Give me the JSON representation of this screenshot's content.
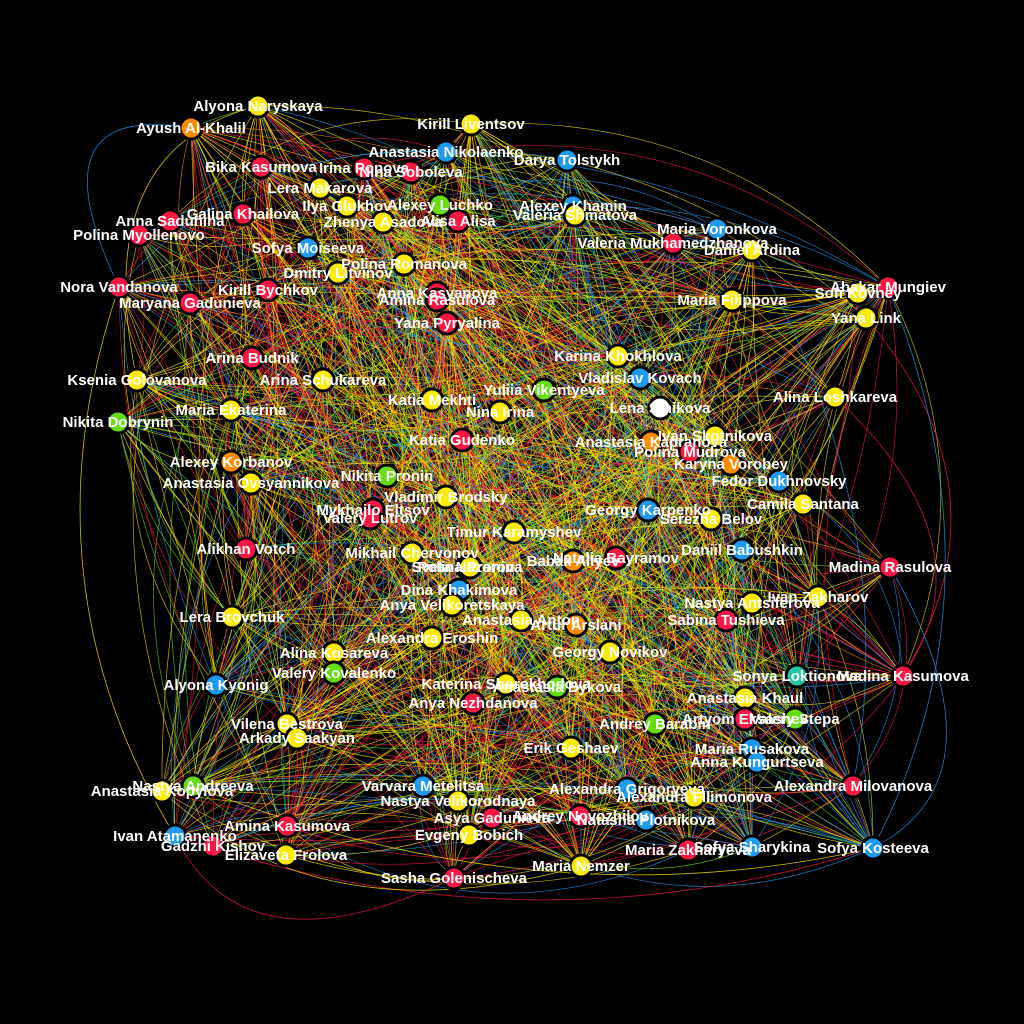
{
  "colors": {
    "background": "#000000",
    "yellow": "#ffeb00",
    "red": "#ff1744",
    "blue": "#1e9bf0",
    "orange": "#ff8c00",
    "green": "#66dd11",
    "teal": "#1ec8a0",
    "pink": "#ff4fa3",
    "white": "#ffffff",
    "node_outline": "#000000"
  },
  "nodes": [
    {
      "id": 1,
      "label": "Alyona Naryskaya",
      "color": "yellow"
    },
    {
      "id": 2,
      "label": "Ayush Al-Khalil",
      "color": "orange"
    },
    {
      "id": 3,
      "label": "Kirill Liventsov",
      "color": "yellow"
    },
    {
      "id": 4,
      "label": "Anastasia Nikolaenko",
      "color": "blue"
    },
    {
      "id": 5,
      "label": "Darya Tolstykh",
      "color": "blue"
    },
    {
      "id": 6,
      "label": "Bika Kasumova",
      "color": "red"
    },
    {
      "id": 7,
      "label": "Irina Popova",
      "color": "red"
    },
    {
      "id": 8,
      "label": "Nina Soboleva",
      "color": "red"
    },
    {
      "id": 9,
      "label": "Lera Makarova",
      "color": "yellow"
    },
    {
      "id": 10,
      "label": "Ilya Glukhov",
      "color": "yellow"
    },
    {
      "id": 11,
      "label": "Alexey Luchko",
      "color": "green"
    },
    {
      "id": 12,
      "label": "Alexey Khamin",
      "color": "blue"
    },
    {
      "id": 13,
      "label": "Valeria Shmatova",
      "color": "yellow"
    },
    {
      "id": 14,
      "label": "Galina Khailova",
      "color": "red"
    },
    {
      "id": 15,
      "label": "Anna Sadunina",
      "color": "red"
    },
    {
      "id": 16,
      "label": "Zhenya Asadova",
      "color": "yellow"
    },
    {
      "id": 17,
      "label": "Alisa Alisa",
      "color": "red"
    },
    {
      "id": 18,
      "label": "Polina Myollenovo",
      "color": "red"
    },
    {
      "id": 19,
      "label": "Sofya Moiseeva",
      "color": "blue"
    },
    {
      "id": 20,
      "label": "Maria Voronkova",
      "color": "blue"
    },
    {
      "id": 21,
      "label": "Valeria Mukhamedzhanova",
      "color": "red"
    },
    {
      "id": 22,
      "label": "Daniel Ardina",
      "color": "yellow"
    },
    {
      "id": 23,
      "label": "Polina Romanova",
      "color": "yellow"
    },
    {
      "id": 24,
      "label": "Dmitry Litvinov",
      "color": "yellow"
    },
    {
      "id": 25,
      "label": "Abakar Mungiev",
      "color": "red"
    },
    {
      "id": 26,
      "label": "Nora Vandanova",
      "color": "red"
    },
    {
      "id": 27,
      "label": "Kirill Bychkov",
      "color": "red"
    },
    {
      "id": 28,
      "label": "Anna Kasyanova",
      "color": "red"
    },
    {
      "id": 29,
      "label": "Sofi Kovney",
      "color": "yellow"
    },
    {
      "id": 30,
      "label": "Maryana Gadunieva",
      "color": "red"
    },
    {
      "id": 31,
      "label": "Amina Rasulova",
      "color": "red"
    },
    {
      "id": 32,
      "label": "Maria Filippova",
      "color": "yellow"
    },
    {
      "id": 33,
      "label": "Yana Link",
      "color": "yellow"
    },
    {
      "id": 34,
      "label": "Yana Pyryalina",
      "color": "red"
    },
    {
      "id": 35,
      "label": "Arina Budnik",
      "color": "red"
    },
    {
      "id": 36,
      "label": "Karina Khokhlova",
      "color": "yellow"
    },
    {
      "id": 37,
      "label": "Vladislav Kovach",
      "color": "blue"
    },
    {
      "id": 38,
      "label": "Ksenia Golovanova",
      "color": "yellow"
    },
    {
      "id": 39,
      "label": "Arina Schukareva",
      "color": "yellow"
    },
    {
      "id": 40,
      "label": "Yuliia Vikentyeva",
      "color": "green"
    },
    {
      "id": 41,
      "label": "Lena Sinikova",
      "color": "white"
    },
    {
      "id": 42,
      "label": "Alina Loshkareva",
      "color": "yellow"
    },
    {
      "id": 43,
      "label": "Nikita Dobrynin",
      "color": "green"
    },
    {
      "id": 44,
      "label": "Maria Ekaterina",
      "color": "yellow"
    },
    {
      "id": 45,
      "label": "Nina Irina",
      "color": "yellow"
    },
    {
      "id": 46,
      "label": "Katia Mekhti",
      "color": "yellow"
    },
    {
      "id": 47,
      "label": "Ivan Skotnikova",
      "color": "yellow"
    },
    {
      "id": 48,
      "label": "Katia Gudenko",
      "color": "red"
    },
    {
      "id": 49,
      "label": "Anastasia Kapranova",
      "color": "orange"
    },
    {
      "id": 50,
      "label": "Polina Mudrova",
      "color": "red"
    },
    {
      "id": 51,
      "label": "Alexey Korbanov",
      "color": "orange"
    },
    {
      "id": 52,
      "label": "Karyna Vorobey",
      "color": "orange"
    },
    {
      "id": 53,
      "label": "Anastasia Ovsyannikova",
      "color": "yellow"
    },
    {
      "id": 54,
      "label": "Nikita Pronin",
      "color": "green"
    },
    {
      "id": 55,
      "label": "Fedor Dukhnovsky",
      "color": "blue"
    },
    {
      "id": 56,
      "label": "Vladimir Brodsky",
      "color": "yellow"
    },
    {
      "id": 57,
      "label": "Camila Santana",
      "color": "yellow"
    },
    {
      "id": 58,
      "label": "Mykhailo Eltsov",
      "color": "red"
    },
    {
      "id": 59,
      "label": "Valery Lutrov",
      "color": "red"
    },
    {
      "id": 60,
      "label": "Georgy Karpenko",
      "color": "blue"
    },
    {
      "id": 61,
      "label": "Serezha Belov",
      "color": "yellow"
    },
    {
      "id": 62,
      "label": "Timur Karamyshev",
      "color": "yellow"
    },
    {
      "id": 63,
      "label": "Alikhan Votch",
      "color": "red"
    },
    {
      "id": 64,
      "label": "Daniil Babushkin",
      "color": "blue"
    },
    {
      "id": 65,
      "label": "Mikhail Chervonov",
      "color": "yellow"
    },
    {
      "id": 66,
      "label": "Sveta Nazarova",
      "color": "yellow"
    },
    {
      "id": 67,
      "label": "Polina Pronina",
      "color": "yellow"
    },
    {
      "id": 68,
      "label": "Babak Aliyev",
      "color": "orange"
    },
    {
      "id": 69,
      "label": "Natalia Bayramov",
      "color": "red"
    },
    {
      "id": 70,
      "label": "Madina Rasulova",
      "color": "red"
    },
    {
      "id": 71,
      "label": "Dina Khakimova",
      "color": "blue"
    },
    {
      "id": 72,
      "label": "Ivan Zakharov",
      "color": "yellow"
    },
    {
      "id": 73,
      "label": "Anya Velikoretskaya",
      "color": "yellow"
    },
    {
      "id": 74,
      "label": "Nastya Antsiferova",
      "color": "yellow"
    },
    {
      "id": 75,
      "label": "Lera Brovchuk",
      "color": "yellow"
    },
    {
      "id": 76,
      "label": "Anastasia Anton",
      "color": "yellow"
    },
    {
      "id": 77,
      "label": "Artur Arslani",
      "color": "orange"
    },
    {
      "id": 78,
      "label": "Sabina Tushieva",
      "color": "red"
    },
    {
      "id": 79,
      "label": "Alexandra Eroshin",
      "color": "yellow"
    },
    {
      "id": 80,
      "label": "Alina Kosareva",
      "color": "yellow"
    },
    {
      "id": 81,
      "label": "Georgy Novikov",
      "color": "yellow"
    },
    {
      "id": 82,
      "label": "Valery Kovalenko",
      "color": "green"
    },
    {
      "id": 83,
      "label": "Sonya Loktionova",
      "color": "teal"
    },
    {
      "id": 84,
      "label": "Madina Kasumova",
      "color": "red"
    },
    {
      "id": 85,
      "label": "Alyona Kyonig",
      "color": "blue"
    },
    {
      "id": 86,
      "label": "Katerina Shorokhodova",
      "color": "yellow"
    },
    {
      "id": 87,
      "label": "Anastasia Bykova",
      "color": "green"
    },
    {
      "id": 88,
      "label": "Anastasia Khaul",
      "color": "yellow"
    },
    {
      "id": 89,
      "label": "Anya Nezhdanova",
      "color": "red"
    },
    {
      "id": 90,
      "label": "Artyom Eksashev",
      "color": "red"
    },
    {
      "id": 91,
      "label": "Valery Stepa",
      "color": "green"
    },
    {
      "id": 92,
      "label": "Andrey Barabin",
      "color": "green"
    },
    {
      "id": 93,
      "label": "Vilena Bestrova",
      "color": "yellow"
    },
    {
      "id": 94,
      "label": "Arkady Saakyan",
      "color": "yellow"
    },
    {
      "id": 95,
      "label": "Erik Geshaev",
      "color": "yellow"
    },
    {
      "id": 96,
      "label": "Maria Rusakova",
      "color": "blue"
    },
    {
      "id": 97,
      "label": "Anna Kungurtseva",
      "color": "blue"
    },
    {
      "id": 98,
      "label": "Nastya Andreeva",
      "color": "green"
    },
    {
      "id": 99,
      "label": "Anastasia Kopylova",
      "color": "yellow"
    },
    {
      "id": 100,
      "label": "Varvara Metelitsa",
      "color": "blue"
    },
    {
      "id": 101,
      "label": "Alexandra Grigoryeva",
      "color": "blue"
    },
    {
      "id": 102,
      "label": "Alexandra Milovanova",
      "color": "red"
    },
    {
      "id": 103,
      "label": "Alexandra Filimonova",
      "color": "yellow"
    },
    {
      "id": 104,
      "label": "Nastya Velikorodnaya",
      "color": "yellow"
    },
    {
      "id": 105,
      "label": "Andrey Novozhilov",
      "color": "red"
    },
    {
      "id": 106,
      "label": "Asya Gadunieva",
      "color": "red"
    },
    {
      "id": 107,
      "label": "Natasha Plotnikova",
      "color": "blue"
    },
    {
      "id": 108,
      "label": "Amina Kasumova",
      "color": "red"
    },
    {
      "id": 109,
      "label": "Ivan Atamanenko",
      "color": "blue"
    },
    {
      "id": 110,
      "label": "Evgeny Bobich",
      "color": "yellow"
    },
    {
      "id": 111,
      "label": "Sofya Sharykina",
      "color": "blue"
    },
    {
      "id": 112,
      "label": "Maria Zakharyeva",
      "color": "red"
    },
    {
      "id": 113,
      "label": "Sofya Kosteeva",
      "color": "blue"
    },
    {
      "id": 114,
      "label": "Gadzhi Kishov",
      "color": "red"
    },
    {
      "id": 115,
      "label": "Elizaveta Frolova",
      "color": "yellow"
    },
    {
      "id": 116,
      "label": "Maria Nemzer",
      "color": "yellow"
    },
    {
      "id": 117,
      "label": "Sasha Golenischeva",
      "color": "red"
    }
  ]
}
